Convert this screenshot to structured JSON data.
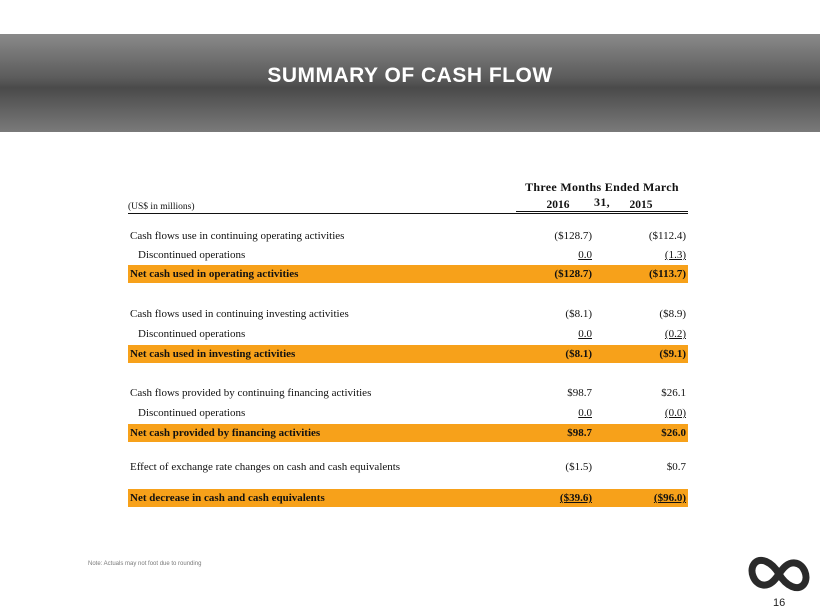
{
  "slide": {
    "title": "SUMMARY OF CASH FLOW",
    "note": "Note: Actuals may not foot due to rounding",
    "page_number": "16",
    "logo_icon": "infinity-loop-logo"
  },
  "table": {
    "period_header": "Three Months Ended March 31,",
    "units_label": "(US$ in millions)",
    "columns": [
      "2016",
      "2015"
    ],
    "rows": [
      {
        "label": "Cash flows use in continuing operating activities",
        "v2016": "($128.7)",
        "v2015": "($112.4)"
      },
      {
        "label": "Discontinued operations",
        "v2016": "0.0",
        "v2015": "(1.3)"
      },
      {
        "label": "Net cash used in operating activities",
        "v2016": "($128.7)",
        "v2015": "($113.7)"
      },
      {
        "label": "Cash flows used in continuing investing activities",
        "v2016": "($8.1)",
        "v2015": "($8.9)"
      },
      {
        "label": "Discontinued operations",
        "v2016": "0.0",
        "v2015": "(0.2)"
      },
      {
        "label": "Net cash used in investing activities",
        "v2016": "($8.1)",
        "v2015": "($9.1)"
      },
      {
        "label": "Cash flows provided by continuing financing activities",
        "v2016": "$98.7",
        "v2015": "$26.1"
      },
      {
        "label": "Discontinued operations",
        "v2016": "0.0",
        "v2015": "(0.0)"
      },
      {
        "label": "Net cash provided by financing activities",
        "v2016": "$98.7",
        "v2015": "$26.0"
      },
      {
        "label": "Effect of exchange rate changes on cash and cash equivalents",
        "v2016": "($1.5)",
        "v2015": "$0.7"
      },
      {
        "label": "Net decrease in cash and cash equivalents",
        "v2016": "($39.6)",
        "v2015": "($96.0)"
      }
    ]
  },
  "colors": {
    "highlight": "#f7a11a",
    "title_band": "#5b5b5b",
    "title_text": "#ffffff"
  }
}
